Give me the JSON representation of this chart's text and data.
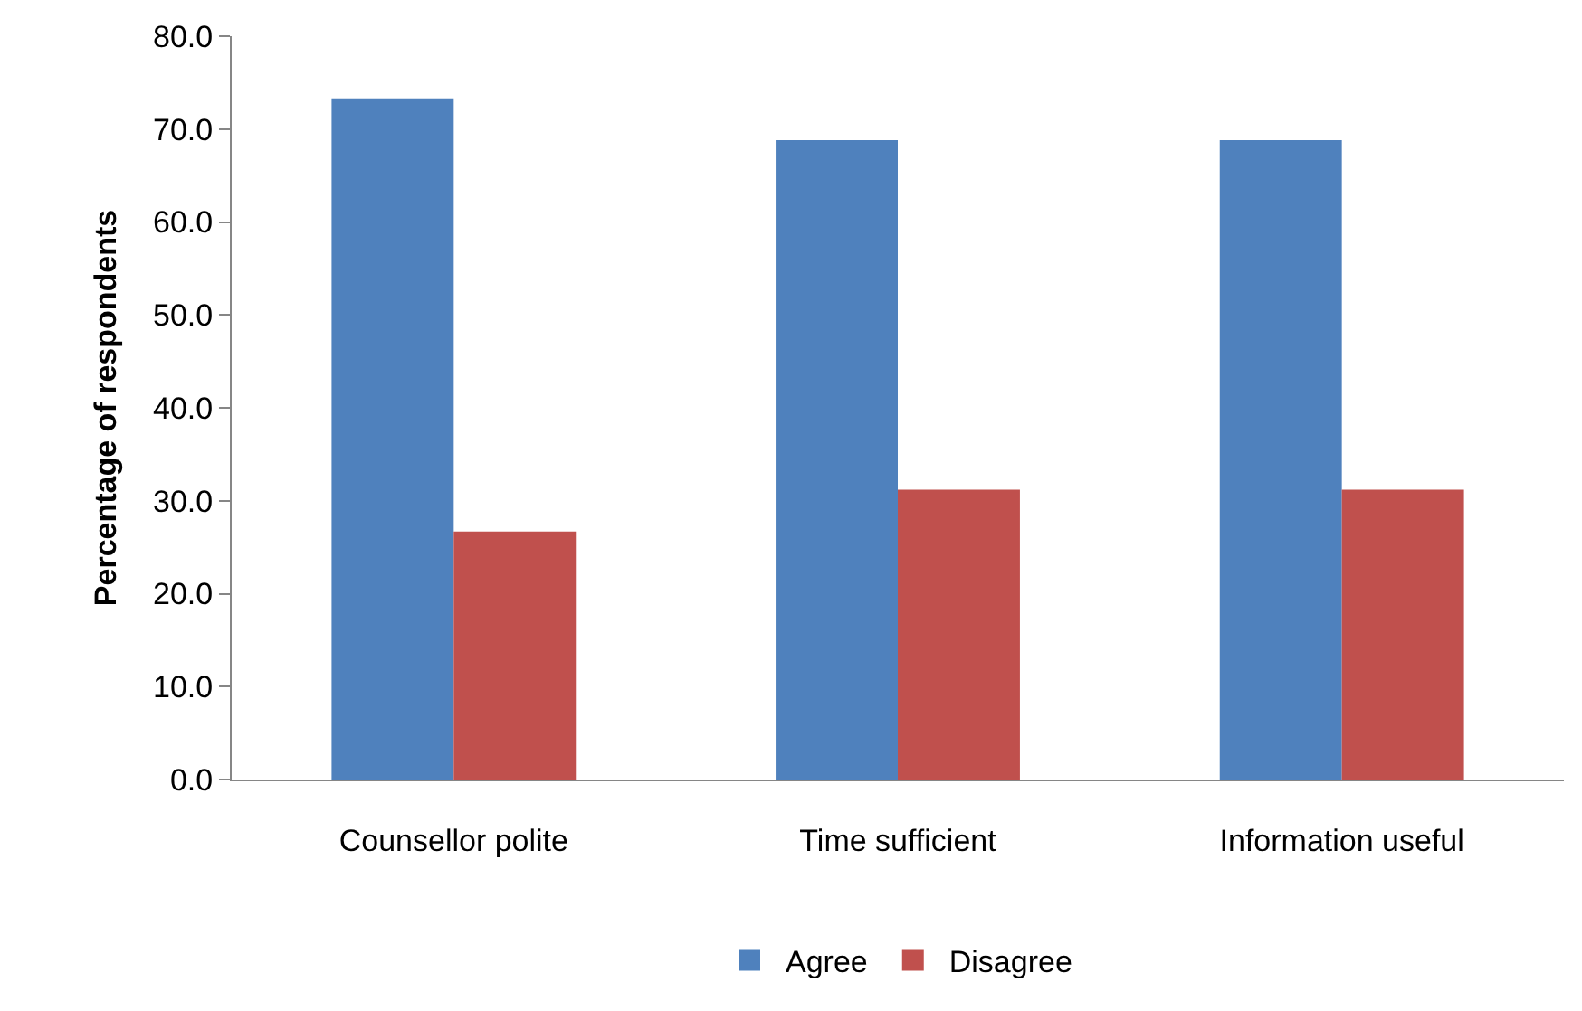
{
  "chart_data": {
    "type": "bar",
    "ylabel": "Percentage of respondents",
    "categories": [
      "Counsellor polite",
      "Time sufficient",
      "Information useful"
    ],
    "series": [
      {
        "name": "Agree",
        "color": "#4f81bd",
        "values": [
          73.3,
          68.8,
          68.8
        ]
      },
      {
        "name": "Disagree",
        "color": "#c0504d",
        "values": [
          26.7,
          31.2,
          31.2
        ]
      }
    ],
    "ylim": [
      0,
      80
    ],
    "yticks": [
      {
        "value": 0,
        "label": "0.0"
      },
      {
        "value": 10,
        "label": "10.0"
      },
      {
        "value": 20,
        "label": "20.0"
      },
      {
        "value": 30,
        "label": "30.0"
      },
      {
        "value": 40,
        "label": "40.0"
      },
      {
        "value": 50,
        "label": "50.0"
      },
      {
        "value": 60,
        "label": "60.0"
      },
      {
        "value": 70,
        "label": "70.0"
      },
      {
        "value": 80,
        "label": "80.0"
      }
    ],
    "legend": "bottom"
  }
}
